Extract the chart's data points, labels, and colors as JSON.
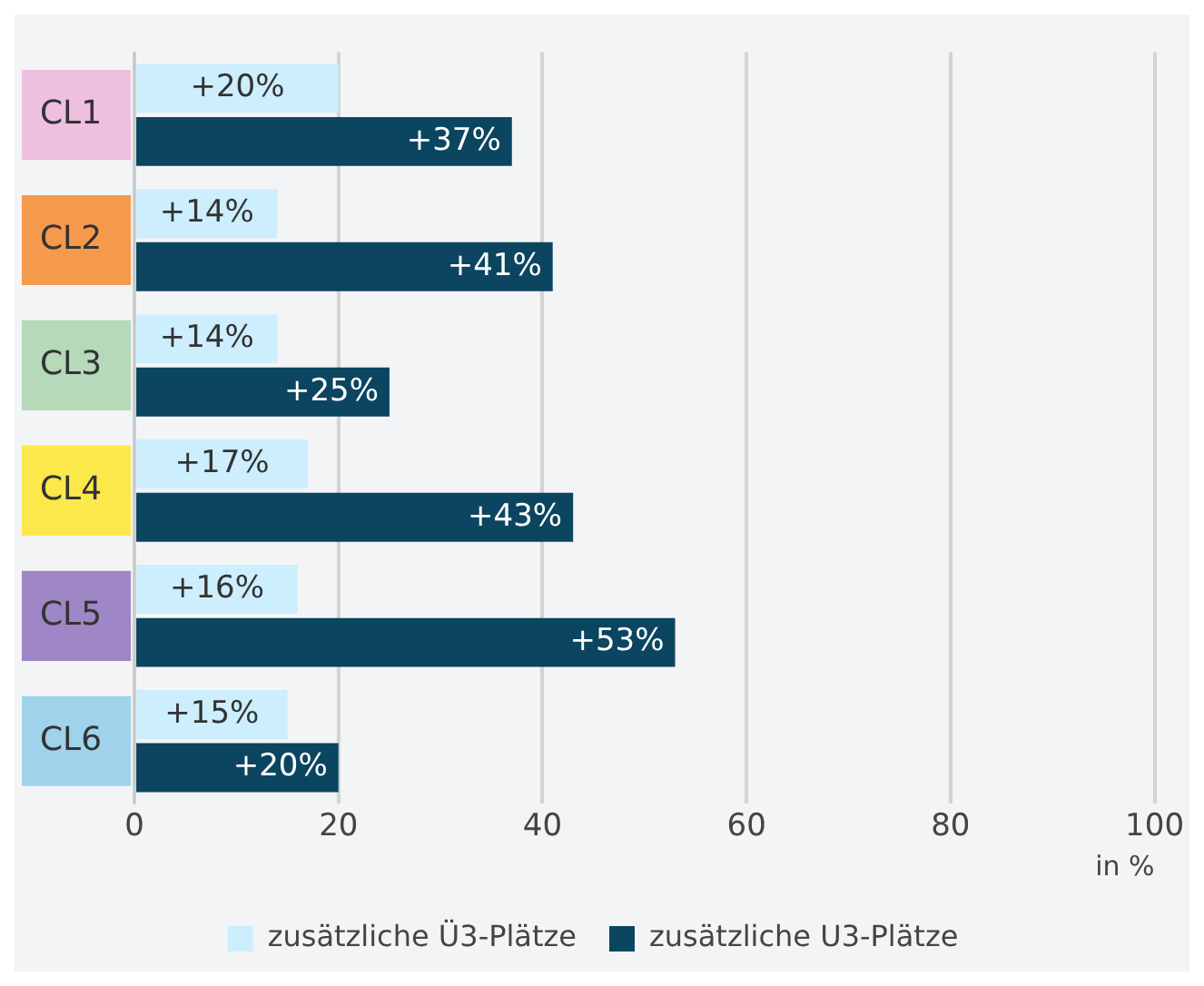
{
  "chart_data": {
    "type": "bar",
    "orientation": "horizontal",
    "categories": [
      "CL1",
      "CL2",
      "CL3",
      "CL4",
      "CL5",
      "CL6"
    ],
    "series": [
      {
        "name": "zusätzliche Ü3-Plätze",
        "color": "#cdeefd",
        "values": [
          20,
          14,
          14,
          17,
          16,
          15
        ],
        "value_labels": [
          "+20%",
          "+14%",
          "+14%",
          "+17%",
          "+16%",
          "+15%"
        ]
      },
      {
        "name": "zusätzliche U3-Plätze",
        "color": "#0b4560",
        "values": [
          37,
          41,
          25,
          43,
          53,
          20
        ],
        "value_labels": [
          "+37%",
          "+41%",
          "+25%",
          "+43%",
          "+53%",
          "+20%"
        ]
      }
    ],
    "xlim": [
      0,
      100
    ],
    "xticks": [
      0,
      20,
      40,
      60,
      80,
      100
    ],
    "xlabel": "in %",
    "grid": "x",
    "legend": "bottom"
  }
}
